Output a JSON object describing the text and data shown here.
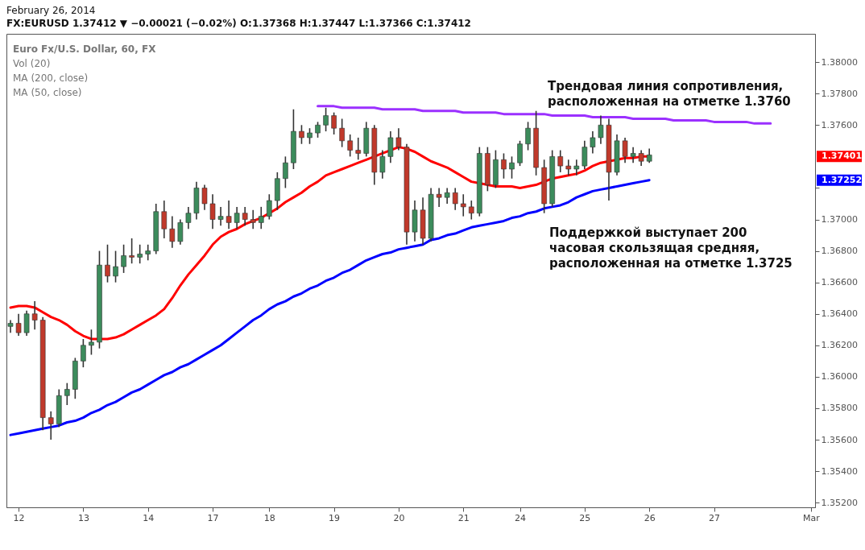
{
  "chart_data": {
    "type": "candlestick",
    "title": "February 26, 2014",
    "subtitle": "FX:EURUSD 1.37412 ▼ −0.00021 (−0.02%) O:1.37368 H:1.37447 L:1.37366 C:1.37412",
    "categories": [
      null,
      "12",
      null,
      null,
      null,
      null,
      null,
      null,
      null,
      "13",
      null,
      null,
      null,
      null,
      null,
      null,
      null,
      "14",
      null,
      null,
      null,
      null,
      null,
      null,
      null,
      "17",
      null,
      null,
      null,
      null,
      null,
      null,
      "18",
      null,
      null,
      null,
      null,
      null,
      null,
      null,
      "19",
      null,
      null,
      null,
      null,
      null,
      null,
      null,
      "20",
      null,
      null,
      null,
      null,
      null,
      null,
      null,
      "21",
      null,
      null,
      null,
      null,
      null,
      null,
      "24",
      null,
      null,
      null,
      null,
      null,
      null,
      null,
      "25",
      null,
      null,
      null,
      null,
      null,
      null,
      null,
      "26",
      null,
      null,
      null,
      null,
      null,
      null,
      null,
      "27",
      null,
      null,
      null,
      null,
      null,
      null,
      null,
      null,
      null,
      null,
      null,
      "Mar"
    ],
    "ohlc": [
      [
        1.3632,
        1.3636,
        1.3628,
        1.3634
      ],
      [
        1.3634,
        1.364,
        1.3626,
        1.3628
      ],
      [
        1.3628,
        1.3642,
        1.3626,
        1.364
      ],
      [
        1.364,
        1.3648,
        1.363,
        1.3636
      ],
      [
        1.3636,
        1.3638,
        1.3566,
        1.3574
      ],
      [
        1.3574,
        1.3578,
        1.356,
        1.357
      ],
      [
        1.357,
        1.3592,
        1.3568,
        1.3588
      ],
      [
        1.3588,
        1.3596,
        1.3582,
        1.3592
      ],
      [
        1.3592,
        1.3612,
        1.3586,
        1.361
      ],
      [
        1.361,
        1.3624,
        1.3606,
        1.362
      ],
      [
        1.362,
        1.363,
        1.3614,
        1.3622
      ],
      [
        1.3622,
        1.368,
        1.3618,
        1.3671
      ],
      [
        1.3671,
        1.3684,
        1.366,
        1.3664
      ],
      [
        1.3664,
        1.368,
        1.366,
        1.367
      ],
      [
        1.367,
        1.3684,
        1.3666,
        1.3677
      ],
      [
        1.3677,
        1.3688,
        1.3672,
        1.3676
      ],
      [
        1.3676,
        1.3684,
        1.3672,
        1.3678
      ],
      [
        1.3678,
        1.3684,
        1.3674,
        1.368
      ],
      [
        1.368,
        1.371,
        1.3678,
        1.3705
      ],
      [
        1.3705,
        1.3712,
        1.3688,
        1.3694
      ],
      [
        1.3694,
        1.3702,
        1.3682,
        1.3686
      ],
      [
        1.3686,
        1.37,
        1.3684,
        1.3698
      ],
      [
        1.3698,
        1.3708,
        1.3694,
        1.3704
      ],
      [
        1.3704,
        1.3724,
        1.37,
        1.372
      ],
      [
        1.372,
        1.3722,
        1.3706,
        1.371
      ],
      [
        1.371,
        1.3716,
        1.3694,
        1.37
      ],
      [
        1.37,
        1.3708,
        1.3696,
        1.3702
      ],
      [
        1.3702,
        1.3712,
        1.3694,
        1.3698
      ],
      [
        1.3698,
        1.3708,
        1.3694,
        1.3704
      ],
      [
        1.3704,
        1.3708,
        1.3696,
        1.37
      ],
      [
        1.37,
        1.3706,
        1.3694,
        1.3698
      ],
      [
        1.3698,
        1.3708,
        1.3694,
        1.3702
      ],
      [
        1.3702,
        1.3716,
        1.37,
        1.3712
      ],
      [
        1.3712,
        1.373,
        1.3706,
        1.3726
      ],
      [
        1.3726,
        1.374,
        1.372,
        1.3736
      ],
      [
        1.3736,
        1.377,
        1.3732,
        1.3756
      ],
      [
        1.3756,
        1.376,
        1.3748,
        1.3752
      ],
      [
        1.3752,
        1.3758,
        1.3748,
        1.3755
      ],
      [
        1.3755,
        1.3762,
        1.3752,
        1.376
      ],
      [
        1.376,
        1.3771,
        1.3756,
        1.3766
      ],
      [
        1.3766,
        1.3768,
        1.3754,
        1.3758
      ],
      [
        1.3758,
        1.3764,
        1.3746,
        1.375
      ],
      [
        1.375,
        1.3754,
        1.374,
        1.3744
      ],
      [
        1.3744,
        1.3752,
        1.3738,
        1.3742
      ],
      [
        1.3742,
        1.3762,
        1.374,
        1.3758
      ],
      [
        1.3758,
        1.376,
        1.3722,
        1.373
      ],
      [
        1.373,
        1.3744,
        1.3726,
        1.374
      ],
      [
        1.374,
        1.3756,
        1.3736,
        1.3752
      ],
      [
        1.3752,
        1.3758,
        1.3744,
        1.3746
      ],
      [
        1.3746,
        1.3748,
        1.3684,
        1.3692
      ],
      [
        1.3692,
        1.3712,
        1.3686,
        1.3706
      ],
      [
        1.3706,
        1.3714,
        1.3684,
        1.3688
      ],
      [
        1.3688,
        1.372,
        1.3686,
        1.3716
      ],
      [
        1.3716,
        1.372,
        1.3708,
        1.3714
      ],
      [
        1.3714,
        1.372,
        1.371,
        1.3717
      ],
      [
        1.3717,
        1.372,
        1.3706,
        1.371
      ],
      [
        1.371,
        1.3716,
        1.3702,
        1.3708
      ],
      [
        1.3708,
        1.3712,
        1.37,
        1.3704
      ],
      [
        1.3704,
        1.3746,
        1.3702,
        1.3742
      ],
      [
        1.3742,
        1.3746,
        1.3718,
        1.3722
      ],
      [
        1.3722,
        1.3744,
        1.372,
        1.3738
      ],
      [
        1.3738,
        1.3742,
        1.3726,
        1.3732
      ],
      [
        1.3732,
        1.374,
        1.3726,
        1.3736
      ],
      [
        1.3736,
        1.375,
        1.3734,
        1.3748
      ],
      [
        1.3748,
        1.3762,
        1.3744,
        1.3758
      ],
      [
        1.3758,
        1.3769,
        1.3728,
        1.3733
      ],
      [
        1.3733,
        1.3738,
        1.3704,
        1.371
      ],
      [
        1.371,
        1.3744,
        1.3708,
        1.374
      ],
      [
        1.374,
        1.3744,
        1.373,
        1.3734
      ],
      [
        1.3734,
        1.3738,
        1.3728,
        1.3732
      ],
      [
        1.3732,
        1.3738,
        1.3728,
        1.3734
      ],
      [
        1.3734,
        1.375,
        1.3732,
        1.3746
      ],
      [
        1.3746,
        1.3756,
        1.3742,
        1.3752
      ],
      [
        1.3752,
        1.3766,
        1.3748,
        1.376
      ],
      [
        1.376,
        1.3764,
        1.3712,
        1.373
      ],
      [
        1.373,
        1.3754,
        1.3728,
        1.375
      ],
      [
        1.375,
        1.3752,
        1.3736,
        1.374
      ],
      [
        1.374,
        1.3746,
        1.3736,
        1.3742
      ],
      [
        1.3742,
        1.3744,
        1.3734,
        1.3737
      ],
      [
        1.3737,
        1.3745,
        1.3736,
        1.3741
      ],
      null,
      null,
      null,
      null,
      null,
      null,
      null,
      null,
      null,
      null,
      null,
      null,
      null,
      null,
      null,
      null,
      null,
      null,
      null,
      null
    ],
    "series": [
      {
        "type": "line",
        "color": "#ff0000",
        "values": [
          1.3644,
          1.3645,
          1.3645,
          1.3644,
          1.3641,
          1.3638,
          1.3636,
          1.3633,
          1.3629,
          1.3626,
          1.3624,
          1.3624,
          1.3624,
          1.3625,
          1.3627,
          1.363,
          1.3633,
          1.3636,
          1.3639,
          1.3643,
          1.365,
          1.3658,
          1.3665,
          1.3671,
          1.3677,
          1.3684,
          1.3689,
          1.3692,
          1.3694,
          1.3697,
          1.3699,
          1.3701,
          1.3704,
          1.3707,
          1.3711,
          1.3714,
          1.3717,
          1.3721,
          1.3724,
          1.3728,
          1.373,
          1.3732,
          1.3734,
          1.3736,
          1.3738,
          1.374,
          1.3742,
          1.3744,
          1.3746,
          1.3745,
          1.3743,
          1.374,
          1.3737,
          1.3735,
          1.3733,
          1.373,
          1.3727,
          1.3724,
          1.3723,
          1.3722,
          1.3721,
          1.3721,
          1.3721,
          1.372,
          1.3721,
          1.3722,
          1.3724,
          1.3726,
          1.3727,
          1.3728,
          1.3729,
          1.3731,
          1.3734,
          1.3736,
          1.3737,
          1.3738,
          1.3739,
          1.3739,
          1.374,
          1.374,
          null,
          null,
          null,
          null,
          null,
          null,
          null,
          null,
          null,
          null,
          null,
          null,
          null,
          null,
          null,
          null,
          null,
          null,
          null,
          null
        ]
      },
      {
        "type": "line",
        "color": "#0000ff",
        "values": [
          1.3563,
          1.3564,
          1.3565,
          1.3566,
          1.3567,
          1.3568,
          1.3569,
          1.3571,
          1.3572,
          1.3574,
          1.3577,
          1.3579,
          1.3582,
          1.3584,
          1.3587,
          1.359,
          1.3592,
          1.3595,
          1.3598,
          1.3601,
          1.3603,
          1.3606,
          1.3608,
          1.3611,
          1.3614,
          1.3617,
          1.362,
          1.3624,
          1.3628,
          1.3632,
          1.3636,
          1.3639,
          1.3643,
          1.3646,
          1.3648,
          1.3651,
          1.3653,
          1.3656,
          1.3658,
          1.3661,
          1.3663,
          1.3666,
          1.3668,
          1.3671,
          1.3674,
          1.3676,
          1.3678,
          1.3679,
          1.3681,
          1.3682,
          1.3683,
          1.3684,
          1.3687,
          1.3688,
          1.369,
          1.3691,
          1.3693,
          1.3695,
          1.3696,
          1.3697,
          1.3698,
          1.3699,
          1.3701,
          1.3702,
          1.3704,
          1.3705,
          1.3707,
          1.3708,
          1.3709,
          1.3711,
          1.3714,
          1.3716,
          1.3718,
          1.3719,
          1.372,
          1.3721,
          1.3722,
          1.3723,
          1.3724,
          1.3725,
          null,
          null,
          null,
          null,
          null,
          null,
          null,
          null,
          null,
          null,
          null,
          null,
          null,
          null,
          null,
          null,
          null,
          null,
          null,
          null
        ]
      },
      {
        "type": "line",
        "color": "#9b30ff",
        "values": [
          null,
          null,
          null,
          null,
          null,
          null,
          null,
          null,
          null,
          null,
          null,
          null,
          null,
          null,
          null,
          null,
          null,
          null,
          null,
          null,
          null,
          null,
          null,
          null,
          null,
          null,
          null,
          null,
          null,
          null,
          null,
          null,
          null,
          null,
          null,
          null,
          null,
          null,
          1.3772,
          1.3772,
          1.3772,
          1.3771,
          1.3771,
          1.3771,
          1.3771,
          1.3771,
          1.377,
          1.377,
          1.377,
          1.377,
          1.377,
          1.3769,
          1.3769,
          1.3769,
          1.3769,
          1.3769,
          1.3768,
          1.3768,
          1.3768,
          1.3768,
          1.3768,
          1.3767,
          1.3767,
          1.3767,
          1.3767,
          1.3767,
          1.3767,
          1.3766,
          1.3766,
          1.3766,
          1.3766,
          1.3766,
          1.3765,
          1.3765,
          1.3765,
          1.3765,
          1.3765,
          1.3764,
          1.3764,
          1.3764,
          1.3764,
          1.3764,
          1.3763,
          1.3763,
          1.3763,
          1.3763,
          1.3763,
          1.3762,
          1.3762,
          1.3762,
          1.3762,
          1.3762,
          1.3761,
          1.3761,
          1.3761,
          null,
          null,
          null,
          null,
          null
        ]
      }
    ],
    "ylim": [
      1.3517,
      1.3818
    ],
    "yticks": [
      {
        "value": 1.352,
        "label": "1.35200"
      },
      {
        "value": 1.354,
        "label": "1.35400"
      },
      {
        "value": 1.356,
        "label": "1.35600"
      },
      {
        "value": 1.358,
        "label": "1.35800"
      },
      {
        "value": 1.36,
        "label": "1.36000"
      },
      {
        "value": 1.362,
        "label": "1.36200"
      },
      {
        "value": 1.364,
        "label": "1.36400"
      },
      {
        "value": 1.366,
        "label": "1.36600"
      },
      {
        "value": 1.368,
        "label": "1.36800"
      },
      {
        "value": 1.37,
        "label": "1.37000"
      },
      {
        "value": 1.372,
        "label": null
      },
      {
        "value": 1.376,
        "label": "1.37600"
      },
      {
        "value": 1.378,
        "label": "1.37800"
      },
      {
        "value": 1.38,
        "label": "1.38000"
      }
    ],
    "annotations": [
      "Трендовая линия сопротивления,\nрасположенная на отметке 1.3760",
      "Поддержкой выступает 200\nчасовая скользящая средняя,\nрасположенная на отметке 1.3725",
      "1.37401",
      "1.37252",
      "Euro Fx/U.S. Dollar, 60, FX",
      "Vol (20)",
      "MA (200, close)",
      "MA (50, close)"
    ]
  }
}
